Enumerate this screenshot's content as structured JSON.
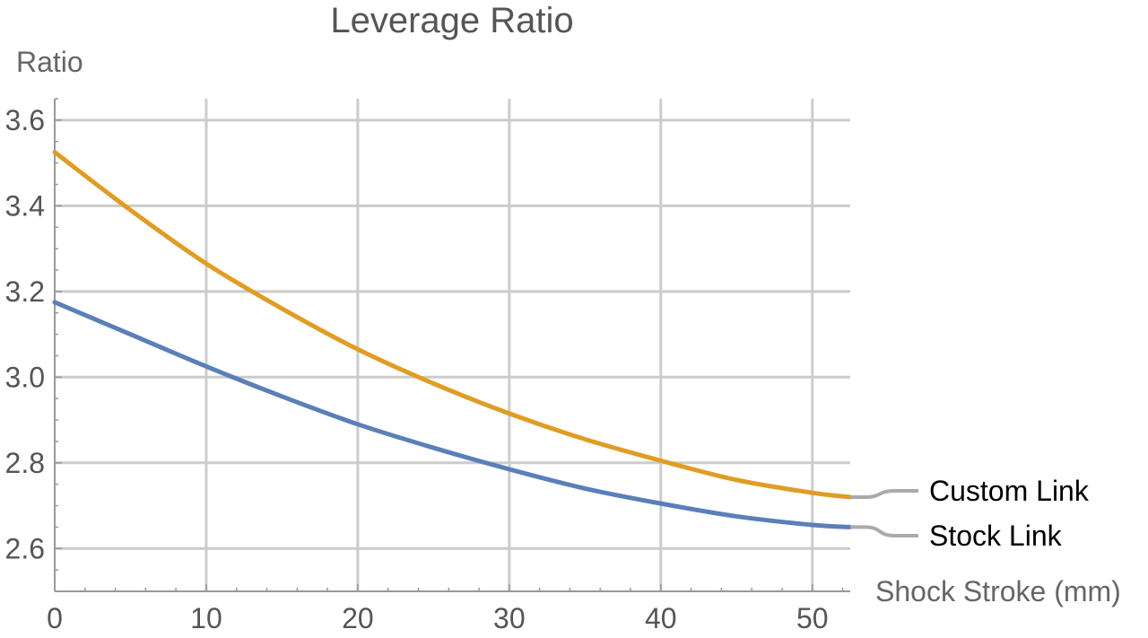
{
  "chart_data": {
    "type": "line",
    "title": "Leverage Ratio",
    "xlabel": "Shock Stroke (mm)",
    "ylabel": "Ratio",
    "xlim": [
      0,
      52.5
    ],
    "ylim": [
      2.5,
      3.65
    ],
    "xticks": [
      0,
      10,
      20,
      30,
      40,
      50
    ],
    "xtick_labels": [
      "0",
      "10",
      "20",
      "30",
      "40",
      "50"
    ],
    "yticks": [
      2.6,
      2.8,
      3.0,
      3.2,
      3.4,
      3.6
    ],
    "ytick_labels": [
      "2.6",
      "2.8",
      "3.0",
      "3.2",
      "3.4",
      "3.6"
    ],
    "grid": true,
    "legend_placement": "right (labels at line ends)",
    "series": [
      {
        "name": "Custom Link",
        "color": "#e09c25",
        "x": [
          0,
          5,
          10,
          15,
          20,
          25,
          30,
          35,
          40,
          45,
          50,
          52.5
        ],
        "y": [
          3.525,
          3.39,
          3.265,
          3.16,
          3.065,
          2.985,
          2.915,
          2.855,
          2.805,
          2.76,
          2.73,
          2.72
        ]
      },
      {
        "name": "Stock Link",
        "color": "#5b7fb8",
        "x": [
          0,
          5,
          10,
          15,
          20,
          25,
          30,
          35,
          40,
          45,
          50,
          52.5
        ],
        "y": [
          3.175,
          3.1,
          3.025,
          2.955,
          2.89,
          2.835,
          2.785,
          2.74,
          2.705,
          2.675,
          2.655,
          2.65
        ]
      }
    ]
  }
}
